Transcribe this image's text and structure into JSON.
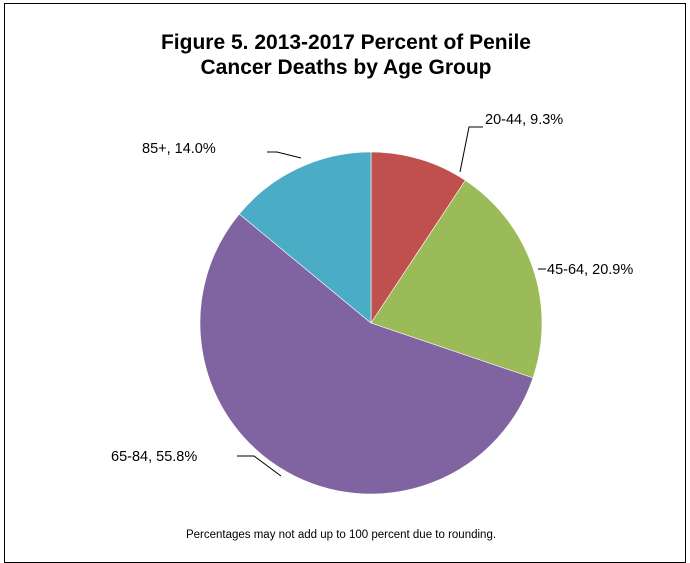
{
  "chart_data": {
    "type": "pie",
    "title_lines": [
      "Figure 5.  2013-2017 Percent of Penile",
      "Cancer Deaths by Age Group"
    ],
    "slices": [
      {
        "category": "20-44",
        "value": 9.3,
        "label": "20-44, 9.3%",
        "color": "#c0504d"
      },
      {
        "category": "45-64",
        "value": 20.9,
        "label": "45-64, 20.9%",
        "color": "#9bbb59"
      },
      {
        "category": "65-84",
        "value": 55.8,
        "label": "65-84, 55.8%",
        "color": "#8064a2"
      },
      {
        "category": "85+",
        "value": 14.0,
        "label": "85+, 14.0%",
        "color": "#4bacc6"
      }
    ],
    "start_angle": "12 o'clock",
    "direction": "clockwise",
    "footnote": "Percentages  may not add up to 100 percent due to rounding."
  }
}
